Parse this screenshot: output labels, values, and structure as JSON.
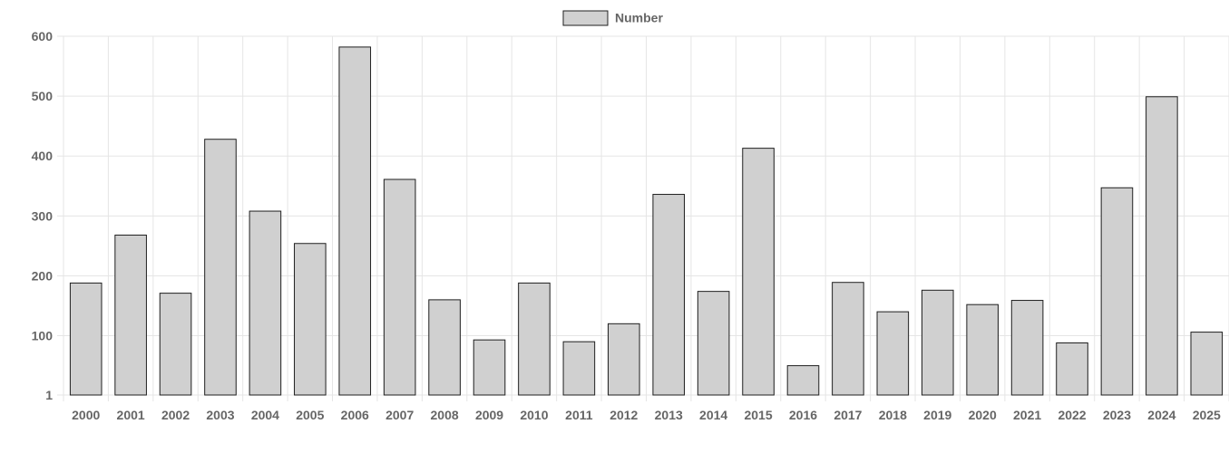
{
  "chart_data": {
    "type": "bar",
    "categories": [
      "2000",
      "2001",
      "2002",
      "2003",
      "2004",
      "2005",
      "2006",
      "2007",
      "2008",
      "2009",
      "2010",
      "2011",
      "2012",
      "2013",
      "2014",
      "2015",
      "2016",
      "2017",
      "2018",
      "2019",
      "2020",
      "2021",
      "2022",
      "2023",
      "2024",
      "2025"
    ],
    "series": [
      {
        "name": "Number",
        "values": [
          188,
          268,
          171,
          428,
          308,
          254,
          582,
          361,
          160,
          93,
          188,
          90,
          120,
          336,
          174,
          413,
          50,
          189,
          140,
          176,
          152,
          159,
          88,
          347,
          499,
          106
        ],
        "color": "#d0d0d0",
        "border_color": "#1f1f1f"
      }
    ],
    "y_ticks": [
      "1",
      "100",
      "200",
      "300",
      "400",
      "500",
      "600"
    ],
    "ylim": [
      1,
      600
    ],
    "grid": true,
    "legend_position": "top-center",
    "title": "",
    "xlabel": "",
    "ylabel": ""
  }
}
